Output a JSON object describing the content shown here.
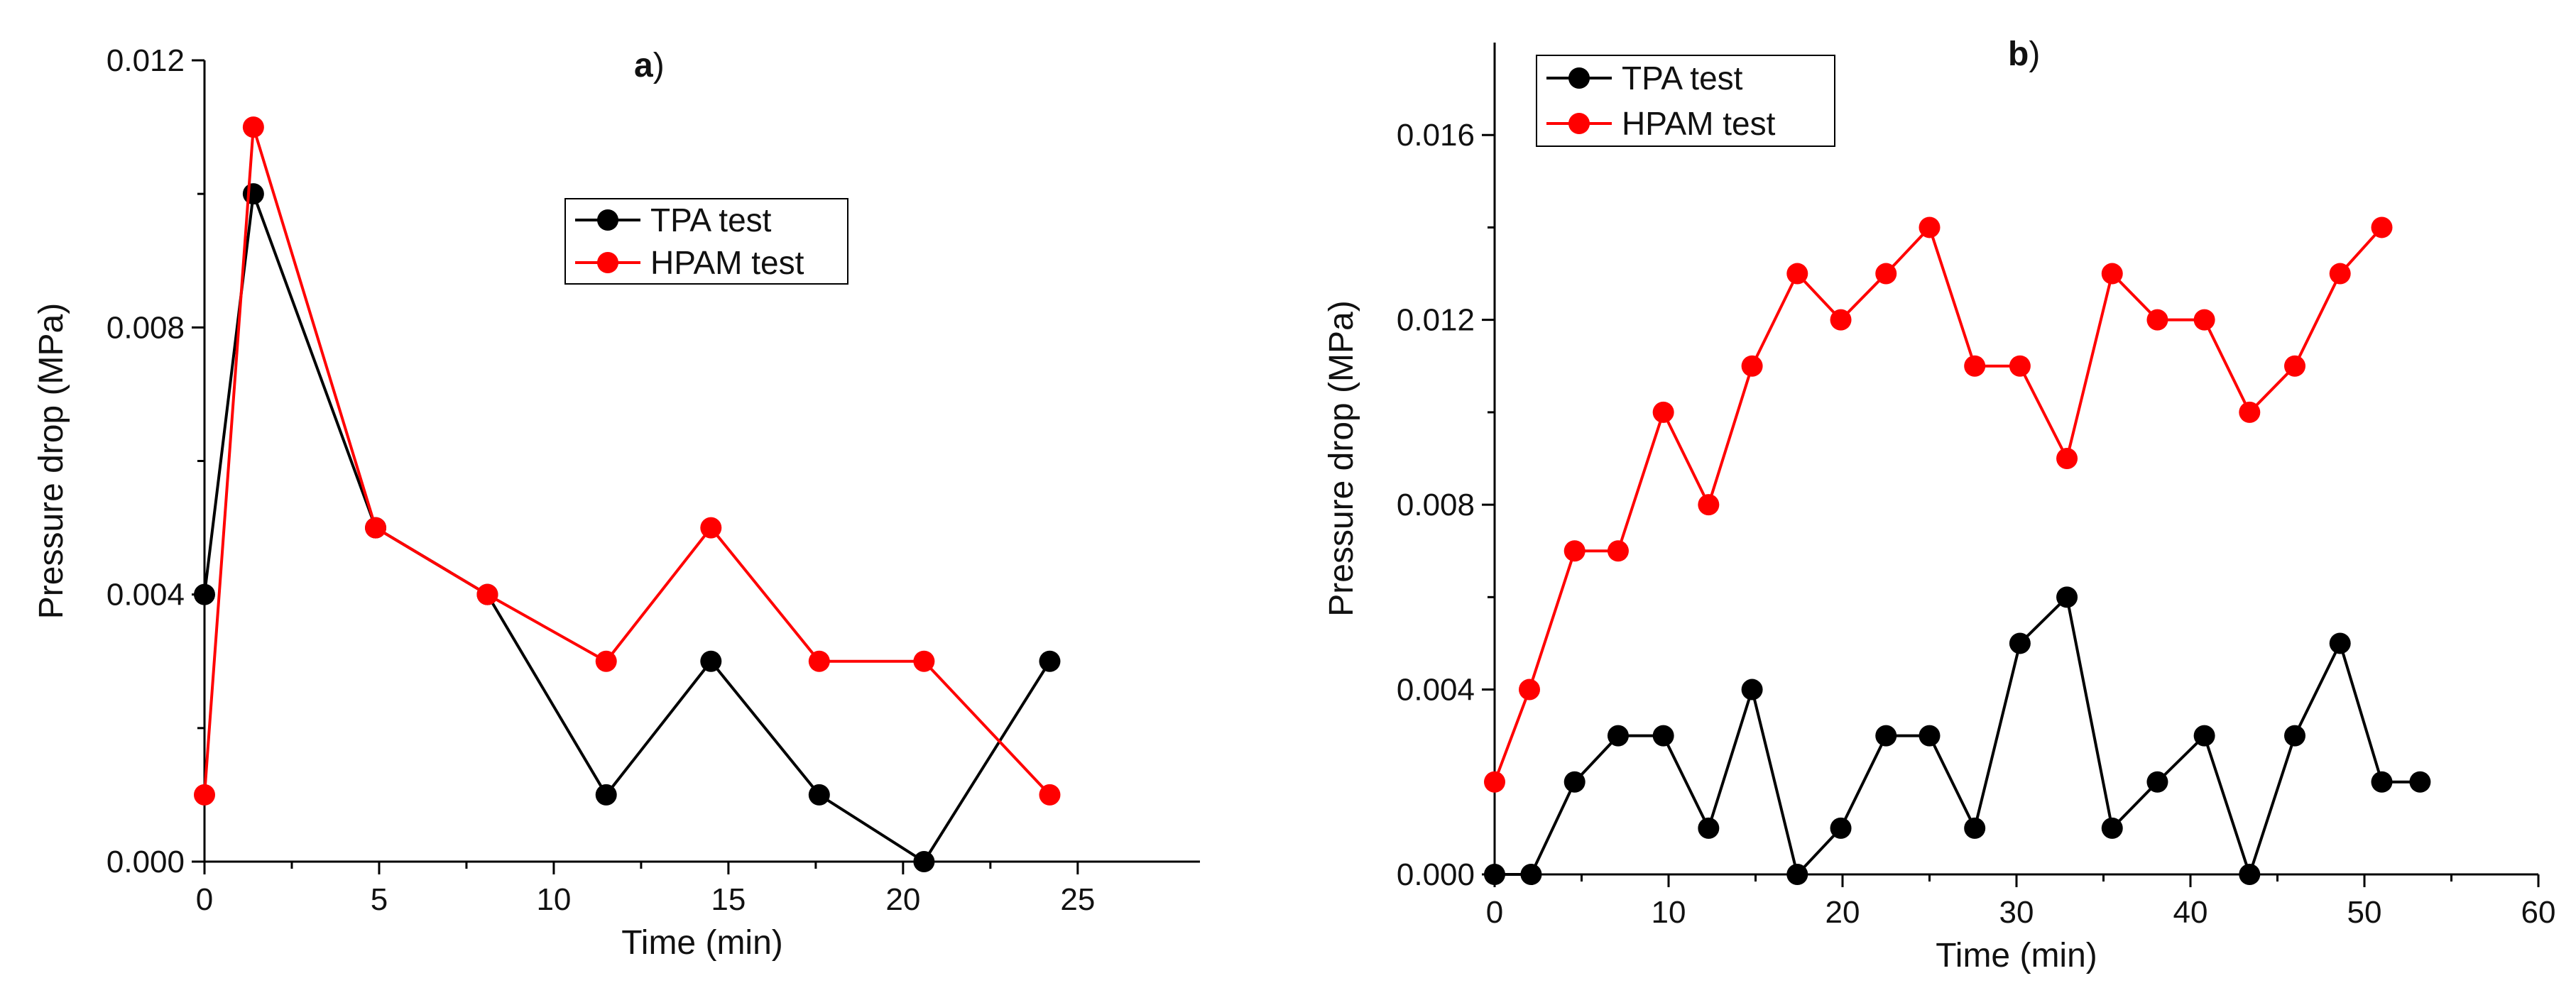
{
  "colors": {
    "tpa": "#000000",
    "hpam": "#ff0000",
    "axis": "#000000"
  },
  "chart_data": [
    {
      "type": "line",
      "panel_letter": "a",
      "panel_suffix": ")",
      "xlabel": "Time (min)",
      "ylabel": "Pressure drop (MPa)",
      "xlim": [
        0,
        28.5
      ],
      "ylim": [
        0,
        0.012
      ],
      "xticks": [
        0,
        5,
        10,
        15,
        20,
        25
      ],
      "xtick_labels": [
        "0",
        "5",
        "10",
        "15",
        "20",
        "25"
      ],
      "yticks": [
        0,
        0.004,
        0.008,
        0.012
      ],
      "ytick_labels": [
        "0.000",
        "0.004",
        "0.008",
        "0.012"
      ],
      "legend_position": "center-right",
      "series": [
        {
          "name": "TPA test",
          "color_key": "tpa",
          "x": [
            0,
            1.4,
            4.9,
            8.1,
            11.5,
            14.5,
            17.6,
            20.6,
            24.2
          ],
          "y": [
            0.004,
            0.01,
            0.005,
            0.004,
            0.001,
            0.003,
            0.001,
            0.0,
            0.003
          ]
        },
        {
          "name": "HPAM test",
          "color_key": "hpam",
          "x": [
            0,
            1.4,
            4.9,
            8.1,
            11.5,
            14.5,
            17.6,
            20.6,
            24.2
          ],
          "y": [
            0.001,
            0.011,
            0.005,
            0.004,
            0.003,
            0.005,
            0.003,
            0.003,
            0.001
          ]
        }
      ]
    },
    {
      "type": "line",
      "panel_letter": "b",
      "panel_suffix": ")",
      "xlabel": "Time (min)",
      "ylabel": "Pressure drop (MPa)",
      "xlim": [
        0,
        60
      ],
      "ylim": [
        0,
        0.018
      ],
      "xticks": [
        0,
        10,
        20,
        30,
        40,
        50,
        60
      ],
      "xtick_labels": [
        "0",
        "10",
        "20",
        "30",
        "40",
        "50",
        "60"
      ],
      "yticks": [
        0,
        0.004,
        0.008,
        0.012,
        0.016
      ],
      "ytick_labels": [
        "0.000",
        "0.004",
        "0.008",
        "0.012",
        "0.016"
      ],
      "legend_position": "top-left",
      "series": [
        {
          "name": "TPA test",
          "color_key": "tpa",
          "x": [
            0,
            2.1,
            4.6,
            7.1,
            9.7,
            12.3,
            14.8,
            17.4,
            19.9,
            22.5,
            25.0,
            27.6,
            30.2,
            32.9,
            35.5,
            38.1,
            40.8,
            43.4,
            46.0,
            48.6,
            51.0,
            53.2
          ],
          "y": [
            0.0,
            0.0,
            0.002,
            0.003,
            0.003,
            0.001,
            0.004,
            0.0,
            0.001,
            0.003,
            0.003,
            0.001,
            0.005,
            0.006,
            0.001,
            0.002,
            0.003,
            0.0,
            0.003,
            0.005,
            0.002,
            0.002
          ]
        },
        {
          "name": "HPAM test",
          "color_key": "hpam",
          "x": [
            0,
            2.0,
            4.6,
            7.1,
            9.7,
            12.3,
            14.8,
            17.4,
            19.9,
            22.5,
            25.0,
            27.6,
            30.2,
            32.9,
            35.5,
            38.1,
            40.8,
            43.4,
            46.0,
            48.6,
            51.0
          ],
          "y": [
            0.002,
            0.004,
            0.007,
            0.007,
            0.01,
            0.008,
            0.011,
            0.013,
            0.012,
            0.013,
            0.014,
            0.011,
            0.011,
            0.009,
            0.013,
            0.012,
            0.012,
            0.01,
            0.011,
            0.013,
            0.014
          ]
        }
      ]
    }
  ]
}
